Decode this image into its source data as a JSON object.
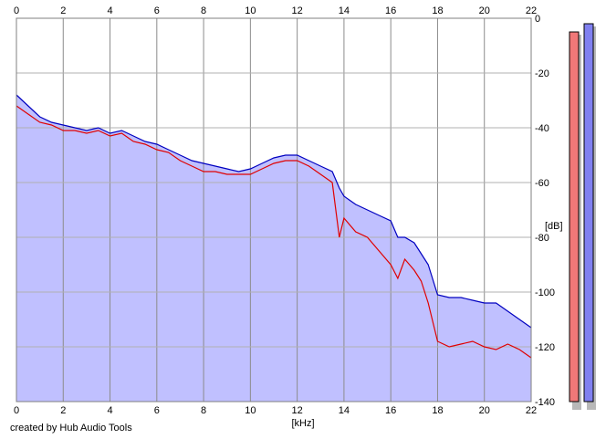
{
  "chart_data": {
    "type": "area",
    "title": "",
    "xlabel": "[kHz]",
    "ylabel": "[dB]",
    "xlim": [
      0,
      22
    ],
    "ylim": [
      -140,
      0
    ],
    "x_ticks": [
      0,
      2,
      4,
      6,
      8,
      10,
      12,
      14,
      16,
      18,
      20,
      22
    ],
    "y_ticks": [
      0,
      -20,
      -40,
      -60,
      -80,
      -100,
      -120,
      -140
    ],
    "grid": true,
    "series": [
      {
        "color": "#0000c0",
        "fill": "#c0c0ff",
        "x": [
          0,
          0.5,
          1,
          1.5,
          2,
          2.5,
          3,
          3.5,
          4,
          4.5,
          5,
          5.5,
          6,
          6.5,
          7,
          7.5,
          8,
          8.5,
          9,
          9.5,
          10,
          10.5,
          11,
          11.5,
          12,
          12.5,
          13,
          13.5,
          13.8,
          14,
          14.5,
          15,
          15.5,
          16,
          16.3,
          16.6,
          17,
          17.3,
          17.6,
          18,
          18.5,
          19,
          19.5,
          20,
          20.5,
          21,
          21.5,
          22
        ],
        "values": [
          -28,
          -32,
          -36,
          -38,
          -39,
          -40,
          -41,
          -40,
          -42,
          -41,
          -43,
          -45,
          -46,
          -48,
          -50,
          -52,
          -53,
          -54,
          -55,
          -56,
          -55,
          -53,
          -51,
          -50,
          -50,
          -52,
          -54,
          -56,
          -62,
          -65,
          -68,
          -70,
          -72,
          -74,
          -80,
          -80,
          -82,
          -86,
          -90,
          -101,
          -102,
          -102,
          -103,
          -104,
          -104,
          -107,
          -110,
          -113
        ]
      },
      {
        "color": "#e00000",
        "x": [
          0,
          0.5,
          1,
          1.5,
          2,
          2.5,
          3,
          3.5,
          4,
          4.5,
          5,
          5.5,
          6,
          6.5,
          7,
          7.5,
          8,
          8.5,
          9,
          9.5,
          10,
          10.5,
          11,
          11.5,
          12,
          12.5,
          13,
          13.5,
          13.8,
          14,
          14.5,
          15,
          15.5,
          16,
          16.3,
          16.6,
          17,
          17.3,
          17.6,
          18,
          18.5,
          19,
          19.5,
          20,
          20.5,
          21,
          21.5,
          22
        ],
        "values": [
          -32,
          -35,
          -38,
          -39,
          -41,
          -41,
          -42,
          -41,
          -43,
          -42,
          -45,
          -46,
          -48,
          -49,
          -52,
          -54,
          -56,
          -56,
          -57,
          -57,
          -57,
          -55,
          -53,
          -52,
          -52,
          -54,
          -57,
          -60,
          -80,
          -73,
          -78,
          -80,
          -85,
          -90,
          -95,
          -88,
          -92,
          -96,
          -104,
          -118,
          -120,
          -119,
          -118,
          -120,
          -121,
          -119,
          -121,
          -124
        ]
      }
    ],
    "level_meters": [
      {
        "color": "#f07878",
        "level_db": -5
      },
      {
        "color": "#8080f0",
        "level_db": -2
      }
    ]
  },
  "credit": "created by Hub Audio Tools"
}
